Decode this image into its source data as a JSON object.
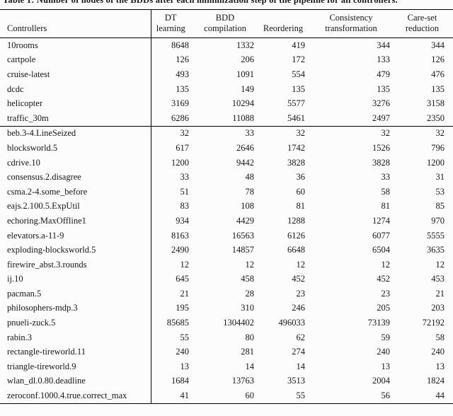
{
  "caption": "Table 1: Number of nodes of the BDDs after each minimization step of the pipeline for all controllers.",
  "table": {
    "columns": [
      {
        "lines": [
          "Controllers"
        ]
      },
      {
        "lines": [
          "DT",
          "learning"
        ]
      },
      {
        "lines": [
          "BDD",
          "compilation"
        ]
      },
      {
        "lines": [
          "Reordering"
        ]
      },
      {
        "lines": [
          "Consistency",
          "transformation"
        ]
      },
      {
        "lines": [
          "Care-set",
          "reduction"
        ]
      }
    ],
    "groups": [
      {
        "rows": [
          [
            "10rooms",
            8648,
            1332,
            419,
            344,
            344
          ],
          [
            "cartpole",
            126,
            206,
            172,
            133,
            126
          ],
          [
            "cruise-latest",
            493,
            1091,
            554,
            479,
            476
          ],
          [
            "dcdc",
            135,
            149,
            135,
            135,
            135
          ],
          [
            "helicopter",
            3169,
            10294,
            5577,
            3276,
            3158
          ],
          [
            "traffic_30m",
            6286,
            11088,
            5461,
            2497,
            2350
          ]
        ]
      },
      {
        "rows": [
          [
            "beb.3-4.LineSeized",
            32,
            33,
            32,
            32,
            32
          ],
          [
            "blocksworld.5",
            617,
            2646,
            1742,
            1526,
            796
          ],
          [
            "cdrive.10",
            1200,
            9442,
            3828,
            3828,
            1200
          ],
          [
            "consensus.2.disagree",
            33,
            48,
            36,
            33,
            31
          ],
          [
            "csma.2-4.some_before",
            51,
            78,
            60,
            58,
            53
          ],
          [
            "eajs.2.100.5.ExpUtil",
            83,
            108,
            81,
            81,
            85
          ],
          [
            "echoring.MaxOffline1",
            934,
            4429,
            1288,
            1274,
            970
          ],
          [
            "elevators.a-11-9",
            8163,
            16563,
            6126,
            6077,
            5555
          ],
          [
            "exploding-blocksworld.5",
            2490,
            14857,
            6648,
            6504,
            3635
          ],
          [
            "firewire_abst.3.rounds",
            12,
            12,
            12,
            12,
            12
          ],
          [
            "ij.10",
            645,
            458,
            452,
            452,
            453
          ],
          [
            "pacman.5",
            21,
            28,
            23,
            23,
            21
          ],
          [
            "philosophers-mdp.3",
            195,
            310,
            246,
            205,
            203
          ],
          [
            "pnueli-zuck.5",
            85685,
            1304402,
            496033,
            73139,
            72192
          ],
          [
            "rabin.3",
            55,
            80,
            62,
            59,
            58
          ],
          [
            "rectangle-tireworld.11",
            240,
            281,
            274,
            240,
            240
          ],
          [
            "triangle-tireworld.9",
            13,
            14,
            14,
            13,
            13
          ],
          [
            "wlan_dl.0.80.deadline",
            1684,
            13763,
            3513,
            2004,
            1824
          ],
          [
            "zeroconf.1000.4.true.correct_max",
            41,
            60,
            55,
            56,
            44
          ]
        ]
      }
    ]
  }
}
